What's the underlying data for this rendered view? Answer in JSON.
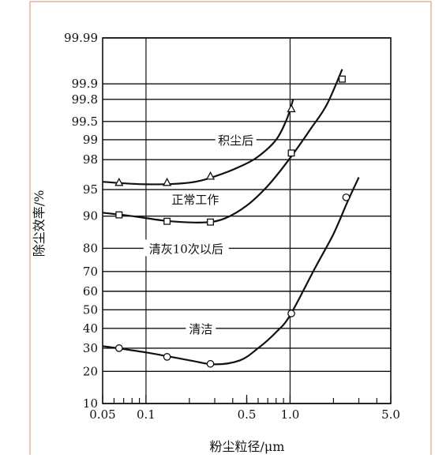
{
  "chart_data": {
    "type": "line",
    "title": "",
    "xlabel": "粉尘粒径/μm",
    "ylabel": "除尘效率/%",
    "x_scale": "log",
    "y_scale": "probability",
    "xlim": [
      0.05,
      5.0
    ],
    "ylim": [
      10,
      99.99
    ],
    "x_ticks": [
      {
        "value": 0.05,
        "label": "0.05"
      },
      {
        "value": 0.1,
        "label": "0.1"
      },
      {
        "value": 0.5,
        "label": "0.5"
      },
      {
        "value": 1.0,
        "label": "1.0"
      },
      {
        "value": 5.0,
        "label": "5.0"
      }
    ],
    "y_ticks": [
      {
        "value": 10,
        "label": "10"
      },
      {
        "value": 20,
        "label": "20"
      },
      {
        "value": 30,
        "label": "30"
      },
      {
        "value": 40,
        "label": "40"
      },
      {
        "value": 50,
        "label": "50"
      },
      {
        "value": 60,
        "label": "60"
      },
      {
        "value": 70,
        "label": "70"
      },
      {
        "value": 80,
        "label": "80"
      },
      {
        "value": 90,
        "label": "90"
      },
      {
        "value": 95,
        "label": "95"
      },
      {
        "value": 98,
        "label": "98"
      },
      {
        "value": 99,
        "label": "99"
      },
      {
        "value": 99.5,
        "label": "99.5"
      },
      {
        "value": 99.8,
        "label": "99.8"
      },
      {
        "value": 99.9,
        "label": "99.9"
      },
      {
        "value": 99.99,
        "label": "99.99"
      }
    ],
    "grid": "horizontal lines at each y tick; vertical lines at 0.1 and 1.0",
    "series": [
      {
        "name": "积尘后",
        "marker": "triangle",
        "points": [
          [
            0.065,
            95.9
          ],
          [
            0.14,
            95.9
          ],
          [
            0.28,
            96.6
          ],
          [
            1.02,
            99.7
          ]
        ],
        "curve": [
          [
            0.05,
            96.0
          ],
          [
            0.1,
            95.7
          ],
          [
            0.2,
            95.9
          ],
          [
            0.3,
            96.6
          ],
          [
            0.45,
            97.5
          ],
          [
            0.6,
            98.2
          ],
          [
            0.8,
            99.0
          ],
          [
            0.95,
            99.55
          ],
          [
            1.05,
            99.8
          ]
        ]
      },
      {
        "name": "正常工作",
        "marker": "square",
        "points": [
          [
            0.065,
            90.3
          ],
          [
            0.14,
            88.7
          ],
          [
            0.28,
            88.5
          ],
          [
            1.02,
            98.4
          ],
          [
            2.3,
            99.92
          ]
        ],
        "curve": [
          [
            0.05,
            90.8
          ],
          [
            0.08,
            90.0
          ],
          [
            0.14,
            88.8
          ],
          [
            0.25,
            88.4
          ],
          [
            0.35,
            89.4
          ],
          [
            0.5,
            92.3
          ],
          [
            0.7,
            95.5
          ],
          [
            1.0,
            98.1
          ],
          [
            1.4,
            99.35
          ],
          [
            1.8,
            99.75
          ],
          [
            2.3,
            99.95
          ]
        ]
      },
      {
        "name": "清灰10次以后",
        "marker": "none",
        "points": [],
        "curve": []
      },
      {
        "name": "清洁",
        "marker": "circle",
        "points": [
          [
            0.065,
            30.0
          ],
          [
            0.14,
            26.0
          ],
          [
            0.28,
            23.0
          ],
          [
            1.02,
            48.0
          ],
          [
            2.45,
            93.8
          ]
        ],
        "curve": [
          [
            0.05,
            31.0
          ],
          [
            0.1,
            28.0
          ],
          [
            0.2,
            24.5
          ],
          [
            0.3,
            22.8
          ],
          [
            0.45,
            24.5
          ],
          [
            0.6,
            30.0
          ],
          [
            0.8,
            38.0
          ],
          [
            1.0,
            47.0
          ],
          [
            1.5,
            72.0
          ],
          [
            2.0,
            85.0
          ],
          [
            2.5,
            93.0
          ],
          [
            3.0,
            96.5
          ]
        ]
      }
    ],
    "annotations": [
      {
        "text": "积尘后",
        "series": "积尘后"
      },
      {
        "text": "正常工作",
        "series": "正常工作"
      },
      {
        "text": "清灰10次以后",
        "series": "清灰10次以后"
      },
      {
        "text": "清洁",
        "series": "清洁"
      }
    ]
  }
}
